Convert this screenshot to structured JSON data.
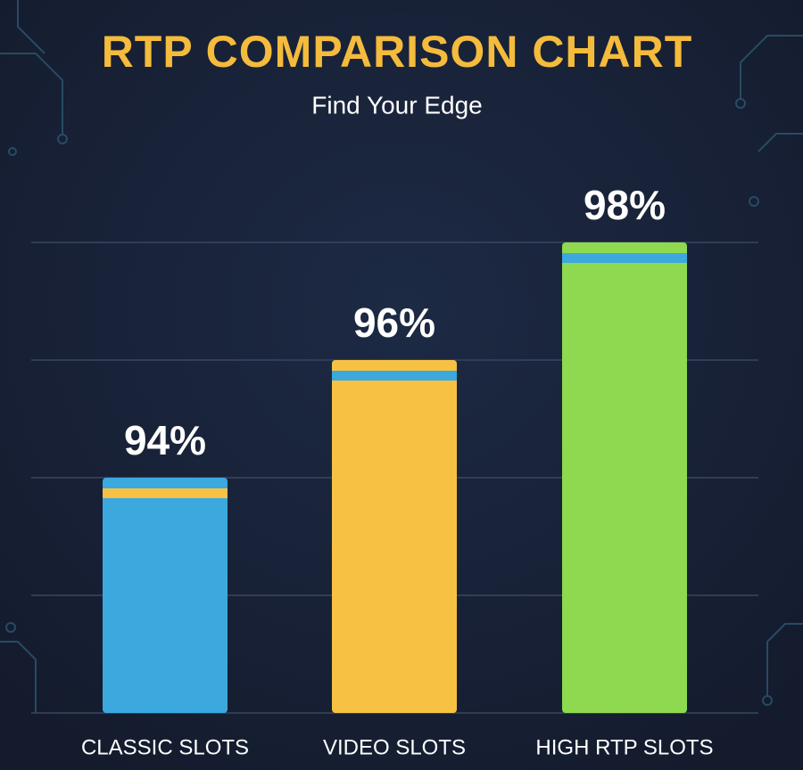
{
  "chart_data": {
    "type": "bar",
    "title": "RTP COMPARISON CHART",
    "subtitle": "Find Your Edge",
    "categories": [
      "CLASSIC SLOTS",
      "VIDEO SLOTS",
      "HIGH RTP SLOTS"
    ],
    "values": [
      94,
      96,
      98
    ],
    "value_labels": [
      "94%",
      "96%",
      "98%"
    ],
    "colors": [
      "#3ba8de",
      "#f7c244",
      "#8ed94f"
    ],
    "accent_colors": [
      "#f7c244",
      "#3ba8de",
      "#3ba8de"
    ],
    "ylim": [
      90,
      98
    ],
    "yticks": [
      90,
      92,
      94,
      96,
      98
    ],
    "grid": true
  }
}
